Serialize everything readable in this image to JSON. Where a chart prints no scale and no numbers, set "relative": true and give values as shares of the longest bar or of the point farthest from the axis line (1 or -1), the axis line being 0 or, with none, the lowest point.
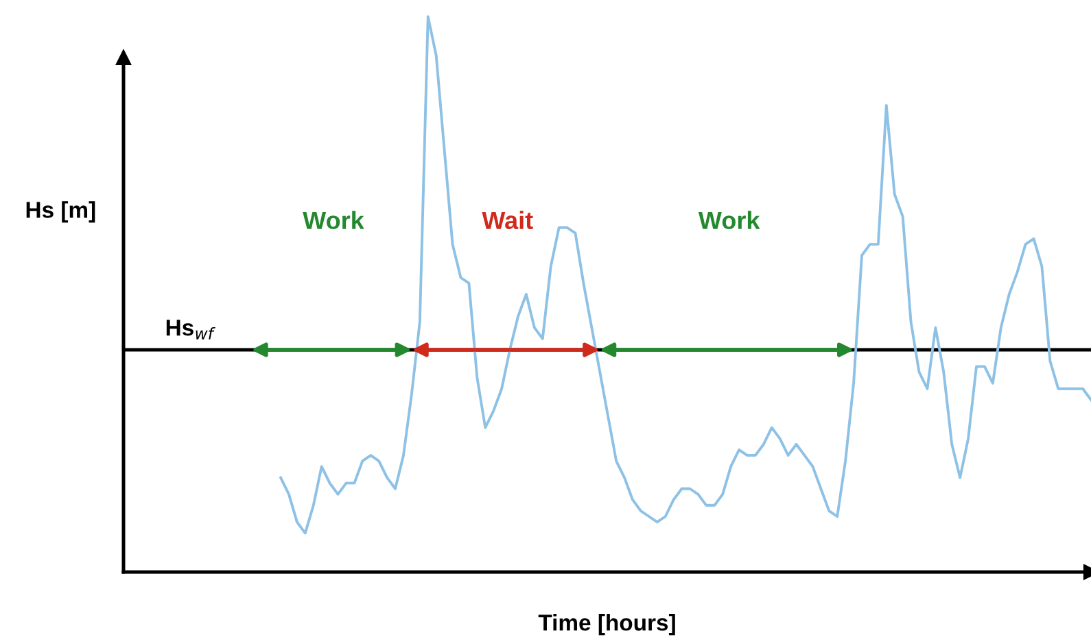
{
  "chart_data": {
    "type": "line",
    "relative": true,
    "xlabel": "Time [hours]",
    "ylabel": "Hs [m]",
    "categories": [
      null,
      null,
      null,
      null,
      null,
      null,
      null,
      null,
      null,
      null,
      null,
      null,
      null,
      null,
      null,
      null,
      null,
      null,
      null,
      null,
      null,
      null,
      null,
      null,
      null,
      null,
      null,
      null,
      null,
      null,
      null,
      null,
      null,
      null,
      null,
      null,
      null,
      null,
      null,
      null,
      null,
      null,
      null,
      null,
      null,
      null,
      null,
      null,
      null,
      null,
      null,
      null,
      null,
      null,
      null,
      null,
      null,
      null,
      null,
      null,
      null,
      null,
      null,
      null,
      null,
      null,
      null,
      null,
      null,
      null,
      null,
      null,
      null,
      null,
      null,
      null,
      null,
      null,
      null,
      null,
      null,
      null,
      null,
      null,
      null,
      null,
      null,
      null,
      null,
      null,
      null,
      null,
      null,
      null,
      null,
      null,
      null,
      null,
      null,
      null,
      null,
      null,
      null,
      null,
      null,
      null,
      null,
      null,
      null,
      null,
      null,
      null,
      null,
      null,
      null,
      null,
      null,
      null,
      null
    ],
    "series": [
      {
        "color": "#8ec1e6",
        "values": [
          null,
          null,
          null,
          null,
          null,
          null,
          null,
          null,
          null,
          null,
          null,
          null,
          null,
          null,
          null,
          null,
          null,
          null,
          null,
          0.17,
          0.14,
          0.09,
          0.07,
          0.12,
          0.19,
          0.16,
          0.14,
          0.16,
          0.16,
          0.2,
          0.21,
          0.2,
          0.17,
          0.15,
          0.21,
          0.32,
          0.45,
          1,
          0.93,
          0.76,
          0.59,
          0.53,
          0.52,
          0.35,
          0.26,
          0.29,
          0.33,
          0.4,
          0.46,
          0.5,
          0.44,
          0.42,
          0.55,
          0.62,
          0.62,
          0.61,
          0.52,
          0.44,
          0.36,
          0.28,
          0.2,
          0.17,
          0.13,
          0.11,
          0.1,
          0.09,
          0.1,
          0.13,
          0.15,
          0.15,
          0.14,
          0.12,
          0.12,
          0.14,
          0.19,
          0.22,
          0.21,
          0.21,
          0.23,
          0.26,
          0.24,
          0.21,
          0.23,
          0.21,
          0.19,
          0.15,
          0.11,
          0.1,
          0.2,
          0.34,
          0.57,
          0.59,
          0.59,
          0.84,
          0.68,
          0.64,
          0.45,
          0.36,
          0.33,
          0.44,
          0.36,
          0.23,
          0.17,
          0.24,
          0.37,
          0.37,
          0.34,
          0.44,
          0.5,
          0.54,
          0.59,
          0.6,
          0.55,
          0.38,
          0.33,
          0.33,
          0.33,
          0.33,
          0.31
        ]
      }
    ],
    "ref_lines": [
      {
        "axis": "y",
        "value": 0.4,
        "label": "Hs$_{wf}$",
        "color": "#000000"
      }
    ],
    "annotations": [
      "Work",
      "Wait",
      "Work"
    ],
    "marker": "none",
    "line_style": "solid"
  }
}
